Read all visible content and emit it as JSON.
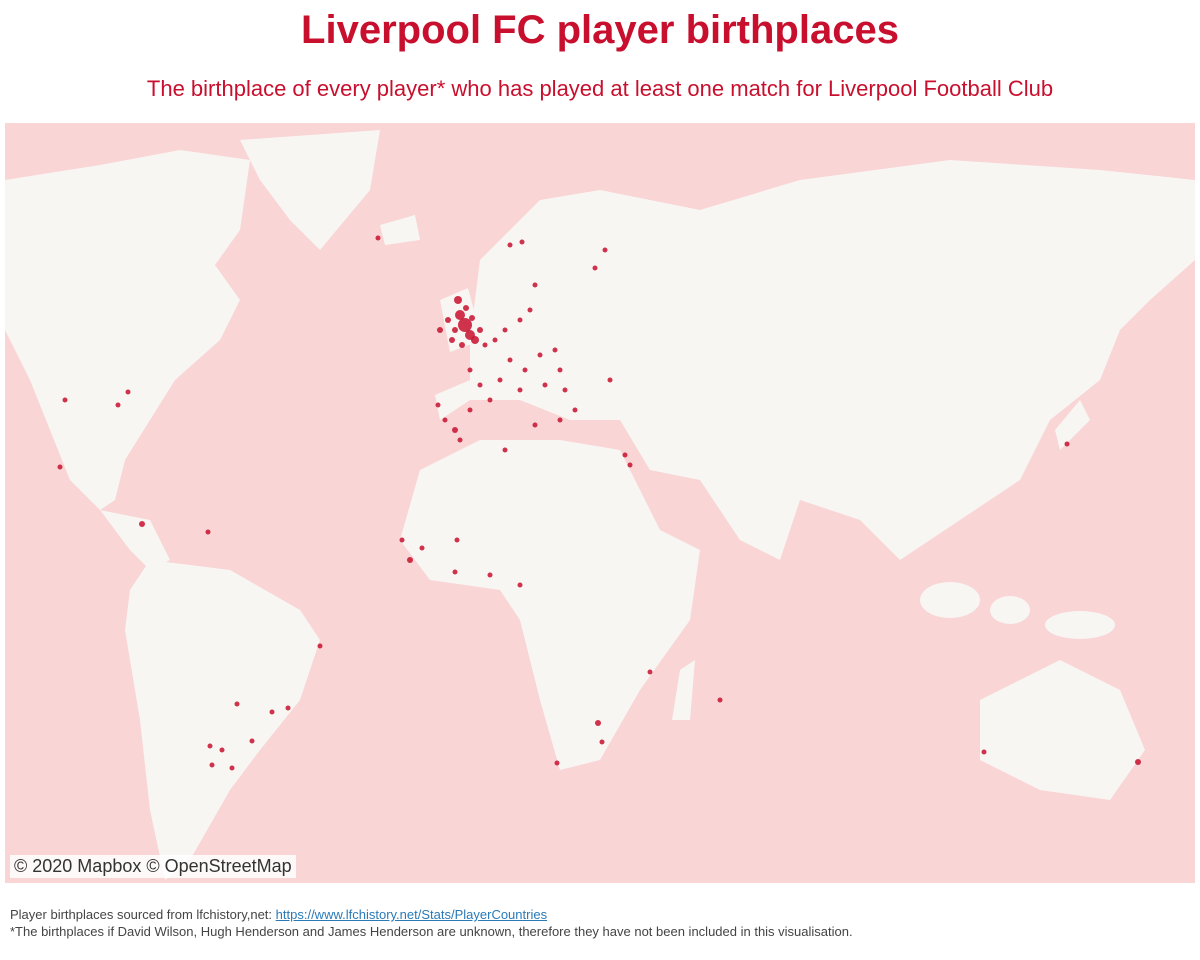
{
  "header": {
    "title": "Liverpool FC player birthplaces",
    "subtitle": "The birthplace of every player* who has played at least one match for Liverpool Football Club"
  },
  "map": {
    "attribution": "© 2020 Mapbox © OpenStreetMap"
  },
  "footer": {
    "source_text": "Player birthplaces sourced from lfchistory,net:",
    "source_link": "https://www.lfchistory.net/Stats/PlayerCountries",
    "note": "*The birthplaces if David Wilson, Hugh Henderson and James Henderson are unknown, therefore they have not been included in this visualisation."
  }
}
